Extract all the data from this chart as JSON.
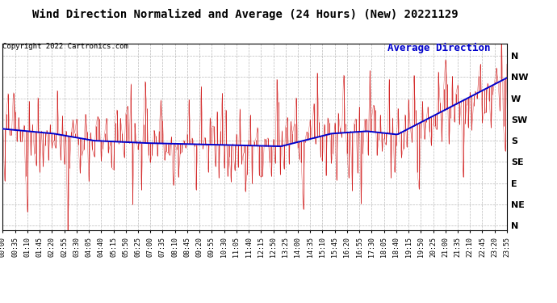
{
  "title": "Wind Direction Normalized and Average (24 Hours) (New) 20221129",
  "copyright_text": "Copyright 2022 Cartronics.com",
  "legend_avg": "Average Direction",
  "ytick_labels": [
    "N",
    "NW",
    "W",
    "SW",
    "S",
    "SE",
    "E",
    "NE",
    "N"
  ],
  "ytick_values": [
    360,
    315,
    270,
    225,
    180,
    135,
    90,
    45,
    0
  ],
  "ymin": -10,
  "ymax": 385,
  "bg_color": "#ffffff",
  "grid_color": "#aaaaaa",
  "raw_color": "#cc0000",
  "avg_color": "#0000cc",
  "title_fontsize": 10,
  "copyright_fontsize": 6.5,
  "legend_fontsize": 9,
  "tick_fontsize": 6,
  "ytick_fontsize": 8
}
